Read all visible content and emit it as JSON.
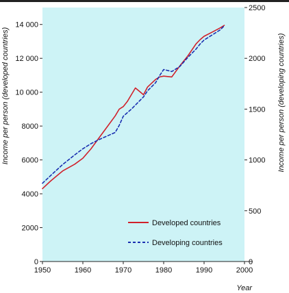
{
  "chart_data": {
    "type": "line",
    "xlabel": "Year",
    "ylabel_left": "Income per person (developed countries)",
    "ylabel_right": "Income per person (developing countries)",
    "xlim": [
      1950,
      2000
    ],
    "ylim_left": [
      0,
      15000
    ],
    "ylim_right": [
      0,
      2500
    ],
    "x_ticks": [
      1950,
      1960,
      1970,
      1980,
      1990,
      2000
    ],
    "y_left_ticks": [
      0,
      2000,
      4000,
      6000,
      8000,
      10000,
      12000,
      14000
    ],
    "y_left_tick_labels": [
      "0",
      "2000",
      "4000",
      "6000",
      "8000",
      "10 000",
      "12 000",
      "14 000"
    ],
    "y_right_ticks": [
      0,
      500,
      1000,
      1500,
      2000,
      2500
    ],
    "y_right_tick_labels": [
      "0",
      "500",
      "1000",
      "1500",
      "2000",
      "2500"
    ],
    "legend_position": "bottom-right",
    "background_color": "#cdf3f6",
    "series": [
      {
        "name": "Developed countries",
        "axis": "left",
        "style": "solid",
        "color": "#d0202a",
        "x": [
          1950,
          1952,
          1955,
          1958,
          1960,
          1962,
          1964,
          1966,
          1968,
          1969,
          1970,
          1971,
          1972,
          1973,
          1974,
          1975,
          1976,
          1978,
          1979,
          1980,
          1982,
          1984,
          1986,
          1988,
          1989,
          1990,
          1992,
          1994,
          1995
        ],
        "y": [
          4300,
          4750,
          5350,
          5750,
          6100,
          6650,
          7300,
          7950,
          8600,
          9000,
          9150,
          9450,
          9850,
          10250,
          10050,
          9850,
          10300,
          10750,
          10900,
          10950,
          10900,
          11550,
          12150,
          12850,
          13100,
          13300,
          13550,
          13800,
          13950
        ]
      },
      {
        "name": "Developing countries",
        "axis": "right",
        "style": "dashed",
        "color": "#1a2fb0",
        "x": [
          1950,
          1952,
          1955,
          1958,
          1960,
          1962,
          1964,
          1966,
          1968,
          1969,
          1970,
          1972,
          1974,
          1975,
          1976,
          1978,
          1979,
          1980,
          1982,
          1984,
          1986,
          1988,
          1989,
          1990,
          1992,
          1994,
          1995
        ],
        "y": [
          770,
          845,
          955,
          1050,
          1110,
          1160,
          1200,
          1235,
          1270,
          1340,
          1430,
          1500,
          1580,
          1620,
          1680,
          1760,
          1830,
          1890,
          1870,
          1920,
          2010,
          2090,
          2140,
          2180,
          2230,
          2280,
          2320
        ]
      }
    ]
  }
}
